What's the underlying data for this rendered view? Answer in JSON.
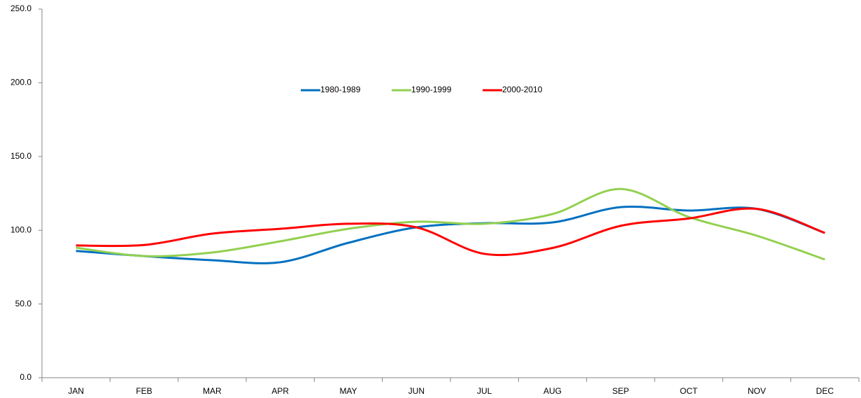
{
  "chart_data": {
    "type": "line",
    "categories": [
      "JAN",
      "FEB",
      "MAR",
      "APR",
      "MAY",
      "JUN",
      "JUL",
      "AUG",
      "SEP",
      "OCT",
      "NOV",
      "DEC"
    ],
    "series": [
      {
        "name": "1980-1989",
        "color": "#0070c0",
        "values": [
          86,
          82.5,
          79.7,
          78.3,
          91.5,
          102,
          104.8,
          105.3,
          115.7,
          113.4,
          114.5,
          98.2
        ]
      },
      {
        "name": "1990-1999",
        "color": "#92d050",
        "values": [
          88.2,
          82.5,
          84.9,
          92.5,
          101,
          105.8,
          104.4,
          111,
          128,
          109,
          96.3,
          80.2
        ]
      },
      {
        "name": "2000-2010",
        "color": "#ff0000",
        "values": [
          89.7,
          90,
          97.7,
          101,
          104.4,
          102,
          84,
          88,
          103,
          108,
          114.5,
          98.2
        ]
      }
    ],
    "ylim": [
      0,
      250
    ],
    "yticks": [
      {
        "value": 0,
        "label": "0.0"
      },
      {
        "value": 50,
        "label": "50.0"
      },
      {
        "value": 100,
        "label": "100.0"
      },
      {
        "value": 150,
        "label": "150.0"
      },
      {
        "value": 200,
        "label": "200.0"
      },
      {
        "value": 250,
        "label": "250.0"
      }
    ],
    "grid": false,
    "legend": "upper center"
  }
}
